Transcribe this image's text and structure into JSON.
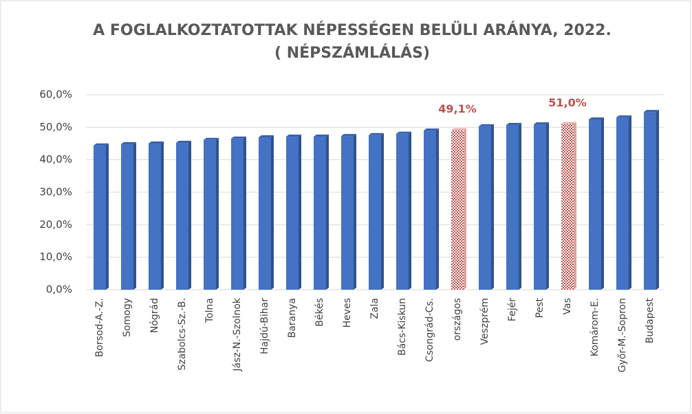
{
  "chart_data": {
    "type": "bar",
    "title": "A FOGLALKOZTATOTTAK NÉPESSÉGEN BELÜLI ARÁNYA, 2022.",
    "subtitle": "( NÉPSZÁMLÁLÁS)",
    "categories": [
      "Borsod-A.-Z.",
      "Somogy",
      "Nógrád",
      "Szabolcs-Sz.-B.",
      "Tolna",
      "Jász-N.-Szolnok",
      "Hajdú-Bihar",
      "Baranya",
      "Békés",
      "Heves",
      "Zala",
      "Bács-Kiskun",
      "Csongrád-Cs.",
      "országos",
      "Veszprém",
      "Fejér",
      "Pest",
      "Vas",
      "Komárom-E.",
      "Győr-M.-Sopron",
      "Budapest"
    ],
    "values": [
      44.4,
      44.8,
      45.0,
      45.2,
      46.1,
      46.5,
      46.9,
      47.1,
      47.1,
      47.3,
      47.6,
      48.0,
      49.0,
      49.1,
      50.3,
      50.7,
      50.9,
      51.0,
      52.4,
      53.0,
      54.7
    ],
    "value_labels": [
      null,
      null,
      null,
      null,
      null,
      null,
      null,
      null,
      null,
      null,
      null,
      null,
      null,
      "49,1%",
      null,
      null,
      null,
      "51,0%",
      null,
      null,
      null
    ],
    "color": "#4472c4",
    "highlight_color": "#c0504d",
    "ylim": [
      0,
      60
    ],
    "yticks": [
      {
        "value": 0,
        "label": "0,0%"
      },
      {
        "value": 10,
        "label": "10,0%"
      },
      {
        "value": 20,
        "label": "20,0%"
      },
      {
        "value": 30,
        "label": "30,0%"
      },
      {
        "value": 40,
        "label": "40,0%"
      },
      {
        "value": 50,
        "label": "50,0%"
      },
      {
        "value": 60,
        "label": "60,0%"
      }
    ],
    "grid": true
  }
}
